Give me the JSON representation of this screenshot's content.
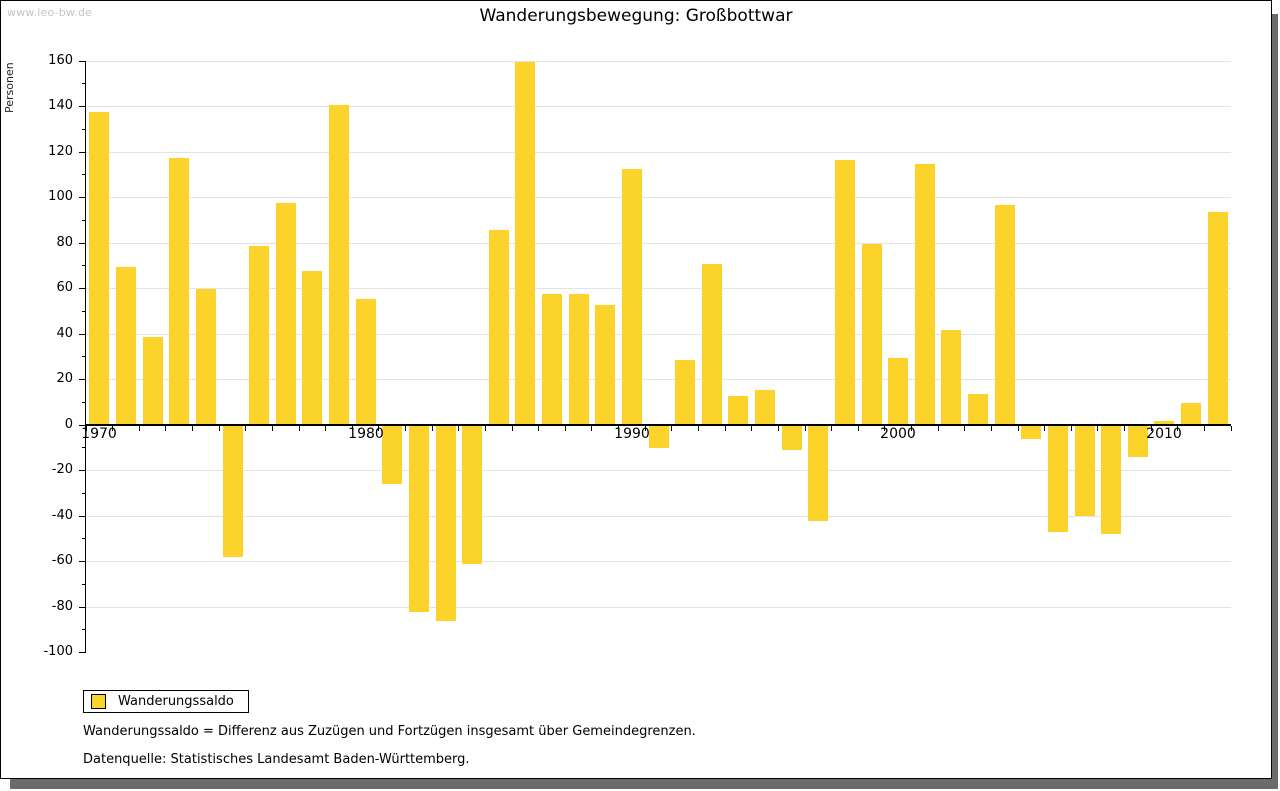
{
  "watermark": "www.leo-bw.de",
  "title": "Wanderungsbewegung: Großbottwar",
  "legend": {
    "label": "Wanderungssaldo"
  },
  "footnotes": [
    "Wanderungssaldo = Differenz aus Zuzügen und Fortzügen insgesamt über Gemeindegrenzen.",
    "Datenquelle: Statistisches Landesamt Baden-Württemberg."
  ],
  "chart_data": {
    "type": "bar",
    "title": "Wanderungsbewegung: Großbottwar",
    "xlabel": "",
    "ylabel": "Personen",
    "ylim": [
      -100,
      160
    ],
    "ytick_step": 20,
    "ytick_minor_step": 10,
    "grid": true,
    "legend_position": "bottom-left",
    "labeled_xticks": [
      "1970",
      "1980",
      "1990",
      "2000",
      "2010"
    ],
    "categories": [
      1970,
      1971,
      1972,
      1973,
      1974,
      1975,
      1976,
      1977,
      1978,
      1979,
      1980,
      1981,
      1982,
      1983,
      1984,
      1985,
      1986,
      1987,
      1988,
      1989,
      1990,
      1991,
      1992,
      1993,
      1994,
      1995,
      1996,
      1997,
      1998,
      1999,
      2000,
      2001,
      2002,
      2003,
      2004,
      2005,
      2006,
      2007,
      2008,
      2009,
      2010,
      2011,
      2012
    ],
    "series": [
      {
        "name": "Wanderungssaldo",
        "color": "#FBD32B",
        "values": [
          138,
          70,
          39,
          118,
          60,
          -58,
          79,
          98,
          68,
          141,
          56,
          -26,
          -82,
          -86,
          -61,
          86,
          160,
          58,
          58,
          53,
          113,
          -10,
          29,
          71,
          13,
          16,
          -11,
          -42,
          117,
          80,
          30,
          115,
          42,
          14,
          97,
          -6,
          -47,
          -40,
          -48,
          -14,
          2,
          10,
          94
        ]
      }
    ],
    "colors": {
      "bar": "#FBD32B",
      "grid": "#e3e3e3",
      "axis": "#000000",
      "shadow": "#6b6b6b",
      "watermark": "#c5c5c5"
    }
  }
}
